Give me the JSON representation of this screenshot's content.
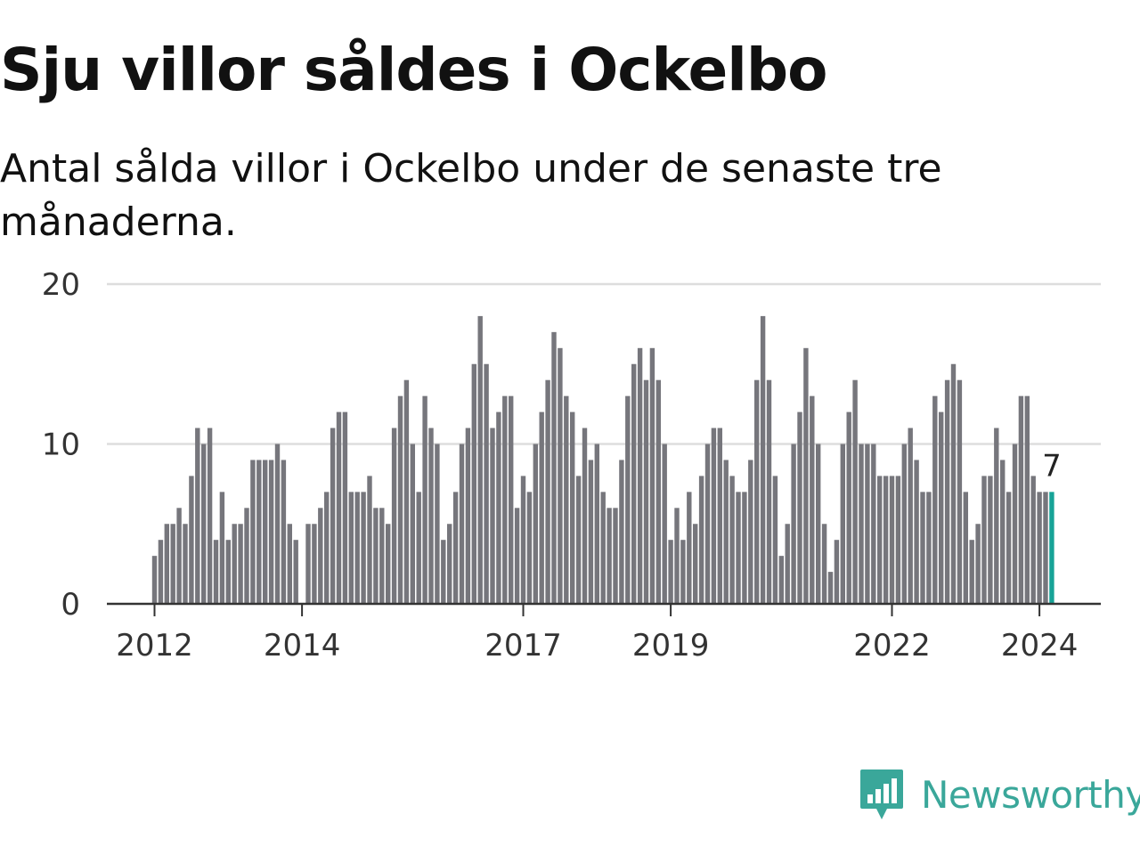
{
  "title": "Sju villor såldes i Ockelbo",
  "subtitle": "Antal sålda villor i Ockelbo under de senaste tre månaderna.",
  "brand": {
    "name": "Newsworthy",
    "color": "#3aa79a",
    "icon": "newsworthy-logo-icon"
  },
  "colors": {
    "bar": "#76767c",
    "highlight": "#17a397",
    "grid": "#dddddd",
    "axis": "#333333"
  },
  "chart_data": {
    "type": "bar",
    "title": "Sju villor såldes i Ockelbo",
    "subtitle": "Antal sålda villor i Ockelbo under de senaste tre månaderna.",
    "xlabel": "",
    "ylabel": "",
    "ylim": [
      0,
      20
    ],
    "yticks": [
      "0",
      "10",
      "20"
    ],
    "xticks": [
      {
        "label": "2012",
        "index": 0
      },
      {
        "label": "2014",
        "index": 24
      },
      {
        "label": "2017",
        "index": 60
      },
      {
        "label": "2019",
        "index": 84
      },
      {
        "label": "2022",
        "index": 120
      },
      {
        "label": "2024",
        "index": 144
      }
    ],
    "x_start": "2012-01",
    "series": [
      {
        "values": [
          3,
          4,
          5,
          5,
          6,
          5,
          8,
          11,
          10,
          11,
          4,
          7,
          4,
          5,
          5,
          6,
          9,
          9,
          9,
          9,
          10,
          9,
          5,
          4,
          0,
          5,
          5,
          6,
          7,
          11,
          12,
          12,
          7,
          7,
          7,
          8,
          6,
          6,
          5,
          11,
          13,
          14,
          10,
          7,
          13,
          11,
          10,
          4,
          5,
          7,
          10,
          11,
          15,
          18,
          15,
          11,
          12,
          13,
          13,
          6,
          8,
          7,
          10,
          12,
          14,
          17,
          16,
          13,
          12,
          8,
          11,
          9,
          10,
          7,
          6,
          6,
          9,
          13,
          15,
          16,
          14,
          16,
          14,
          10,
          4,
          6,
          4,
          7,
          5,
          8,
          10,
          11,
          11,
          9,
          8,
          7,
          7,
          9,
          14,
          18,
          14,
          8,
          3,
          5,
          10,
          12,
          16,
          13,
          10,
          5,
          2,
          4,
          10,
          12,
          14,
          10,
          10,
          10,
          8,
          8,
          8,
          8,
          10,
          11,
          9,
          7,
          7,
          13,
          12,
          14,
          15,
          14,
          7,
          4,
          5,
          8,
          8,
          11,
          9,
          7,
          10,
          13,
          13,
          8,
          7,
          7,
          7
        ]
      }
    ],
    "highlight": {
      "index": 146,
      "value": 7,
      "label": "7"
    },
    "grid": true,
    "legend": "none"
  }
}
